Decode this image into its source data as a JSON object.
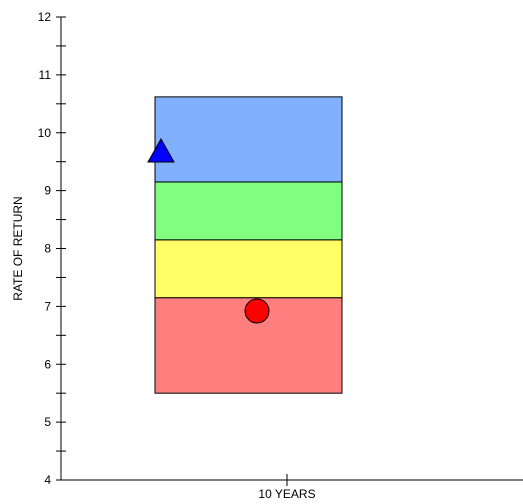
{
  "chart_data": {
    "type": "floating-stacked-bar",
    "xlabel": "10 YEARS",
    "ylabel": "RATE OF RETURN",
    "ylim": [
      4,
      12
    ],
    "yticks": [
      4,
      5,
      6,
      7,
      8,
      9,
      10,
      11,
      12
    ],
    "minor_tick_step": 0.5,
    "grid": false,
    "categories": [
      "10 YEARS"
    ],
    "bands": [
      {
        "from": 5.5,
        "to": 7.15,
        "color": "#ff7f7f"
      },
      {
        "from": 7.15,
        "to": 8.15,
        "color": "#ffff66"
      },
      {
        "from": 8.15,
        "to": 9.15,
        "color": "#80ff80"
      },
      {
        "from": 9.15,
        "to": 10.62,
        "color": "#80b0ff"
      }
    ],
    "markers": [
      {
        "shape": "triangle",
        "value": 9.65,
        "color": "#0000ff"
      },
      {
        "shape": "circle",
        "value": 6.92,
        "color": "#ff0000"
      }
    ]
  }
}
